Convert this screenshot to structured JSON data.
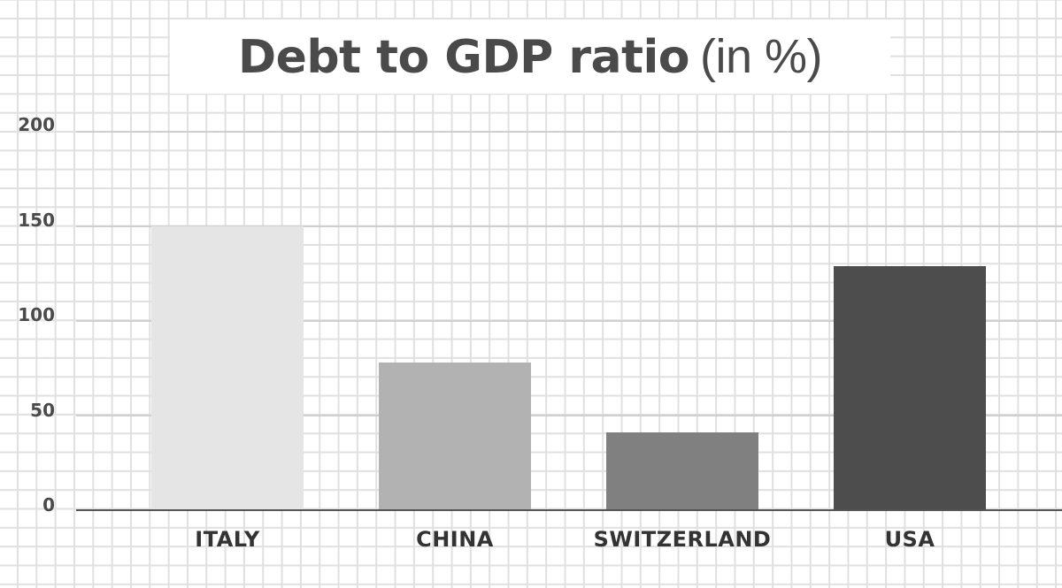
{
  "chart_data": {
    "type": "bar",
    "title": "Debt to GDP ratio (in %)",
    "title_bold": "Debt to GDP ratio",
    "title_light": "(in %)",
    "categories": [
      "ITALY",
      "CHINA",
      "SWITZERLAND",
      "USA"
    ],
    "values": [
      150,
      78,
      41,
      129
    ],
    "bar_colors": [
      "#e5e5e5",
      "#b2b2b2",
      "#808080",
      "#4d4d4d"
    ],
    "xlabel": "",
    "ylabel": "",
    "ylim": [
      0,
      200
    ],
    "yticks": [
      0,
      50,
      100,
      150,
      200
    ],
    "grid": true,
    "legend": null
  },
  "yaxis": {
    "ticks": [
      "200",
      "150",
      "100",
      "50",
      "0"
    ]
  }
}
